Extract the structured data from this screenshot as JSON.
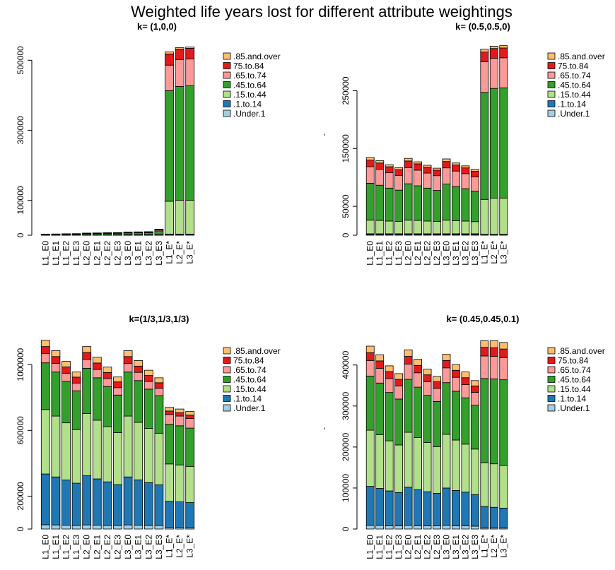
{
  "title": "Weighted life years lost for different attribute weightings",
  "chart_data": [
    {
      "type": "bar",
      "stacked": true,
      "title": "k= (1,0,0)",
      "legend": "right",
      "categories": [
        "L1_E0",
        "L1_E1",
        "L1_E2",
        "L1_E3",
        "L2_E0",
        "L2_E1",
        "L2_E2",
        "L2_E3",
        "L3_E0",
        "L3_E1",
        "L3_E2",
        "L3_E3",
        "L1_E*",
        "L2_E*",
        "L3_E*"
      ],
      "ylim": [
        0,
        545000
      ],
      "yticks": [
        0,
        100000,
        300000,
        500000
      ],
      "series": [
        {
          "name": ".Under.1",
          "color": "#a6cee3",
          "values": [
            30,
            35,
            40,
            45,
            60,
            65,
            70,
            75,
            90,
            95,
            100,
            170,
            1000,
            1000,
            1000
          ]
        },
        {
          "name": ".1.to.14",
          "color": "#1f78b4",
          "values": [
            60,
            70,
            80,
            90,
            120,
            130,
            140,
            150,
            180,
            190,
            200,
            340,
            2000,
            2000,
            2000
          ]
        },
        {
          "name": ".15.to.44",
          "color": "#b2df8a",
          "values": [
            450,
            525,
            600,
            675,
            900,
            975,
            1050,
            1125,
            1350,
            1425,
            1500,
            2550,
            94000,
            97000,
            97000
          ]
        },
        {
          "name": ".45.to.64",
          "color": "#33a02c",
          "values": [
            1650,
            1925,
            2200,
            2475,
            3300,
            3575,
            3850,
            4125,
            4950,
            5225,
            5500,
            9350,
            316000,
            325000,
            327000
          ]
        },
        {
          "name": ".65.to.74",
          "color": "#fb9a99",
          "values": [
            450,
            525,
            600,
            675,
            900,
            975,
            1050,
            1125,
            1350,
            1425,
            1500,
            2550,
            73000,
            77000,
            77000
          ]
        },
        {
          "name": "75.to.84",
          "color": "#e31a1c",
          "values": [
            240,
            280,
            320,
            360,
            480,
            520,
            560,
            600,
            720,
            760,
            800,
            1360,
            32000,
            30000,
            30000
          ]
        },
        {
          "name": ".85.and.over",
          "color": "#fdbf6f",
          "values": [
            120,
            140,
            160,
            180,
            240,
            260,
            280,
            300,
            360,
            380,
            400,
            680,
            6000,
            4000,
            4000
          ]
        }
      ]
    },
    {
      "type": "bar",
      "stacked": true,
      "title": "k= (0.5,0.5,0)",
      "legend": "right",
      "ylabel": "'",
      "categories": [
        "L1_E0",
        "L1_E1",
        "L1_E2",
        "L1_E3",
        "L2_E0",
        "L2_E1",
        "L2_E2",
        "L2_E3",
        "L3_E0",
        "L3_E1",
        "L3_E2",
        "L3_E3",
        "L1_E*",
        "L2_E*",
        "L3_E*"
      ],
      "ylim": [
        0,
        330000
      ],
      "yticks": [
        0,
        50000,
        150000,
        250000
      ],
      "series": [
        {
          "name": ".Under.1",
          "color": "#a6cee3",
          "values": [
            1000,
            1000,
            1000,
            1000,
            1000,
            1000,
            1000,
            1000,
            1000,
            1000,
            1000,
            1000,
            500,
            500,
            500
          ]
        },
        {
          "name": ".1.to.14",
          "color": "#1f78b4",
          "values": [
            1500,
            1500,
            1500,
            1500,
            1500,
            1500,
            1500,
            1500,
            1500,
            1500,
            1500,
            1500,
            1000,
            1000,
            1000
          ]
        },
        {
          "name": ".15.to.44",
          "color": "#b2df8a",
          "values": [
            23500,
            23000,
            22000,
            21500,
            23500,
            23000,
            22000,
            21500,
            23500,
            22500,
            22000,
            21000,
            60500,
            62500,
            62500
          ]
        },
        {
          "name": ".45.to.64",
          "color": "#33a02c",
          "values": [
            64000,
            61000,
            57000,
            54000,
            63000,
            60000,
            57000,
            53500,
            62500,
            59000,
            56000,
            52500,
            185000,
            190000,
            191000
          ]
        },
        {
          "name": ".65.to.74",
          "color": "#fb9a99",
          "values": [
            28500,
            27500,
            26500,
            25500,
            28000,
            27000,
            26000,
            25500,
            28000,
            27000,
            26000,
            25000,
            53000,
            52000,
            52000
          ]
        },
        {
          "name": "75.to.84",
          "color": "#e31a1c",
          "values": [
            11500,
            11000,
            10500,
            10000,
            11500,
            11000,
            10000,
            9500,
            11000,
            10500,
            10000,
            9500,
            17000,
            17000,
            17000
          ]
        },
        {
          "name": ".85.and.over",
          "color": "#fdbf6f",
          "values": [
            4500,
            4000,
            3500,
            3500,
            4500,
            3500,
            3500,
            3500,
            4500,
            3500,
            3500,
            3500,
            5000,
            4000,
            4000
          ]
        }
      ]
    },
    {
      "type": "bar",
      "stacked": true,
      "title": "k=(1/3,1/3,1/3)",
      "legend": "right",
      "categories": [
        "L1_E0",
        "L1_E1",
        "L1_E2",
        "L1_E3",
        "L2_E0",
        "L2_E1",
        "L2_E2",
        "L2_E3",
        "L3_E0",
        "L3_E1",
        "L3_E2",
        "L3_E3",
        "L1_E*",
        "L2_E*",
        "L3_E*"
      ],
      "ylim": [
        0,
        1160000
      ],
      "yticks": [
        0,
        200000,
        600000,
        1000000
      ],
      "series": [
        {
          "name": ".Under.1",
          "color": "#a6cee3",
          "values": [
            26000,
            25000,
            23000,
            22000,
            25000,
            24000,
            22000,
            21000,
            25000,
            23000,
            22000,
            21000,
            10000,
            10000,
            9000
          ]
        },
        {
          "name": ".1.to.14",
          "color": "#1f78b4",
          "values": [
            309000,
            292000,
            275000,
            257000,
            299000,
            281000,
            265000,
            249000,
            292000,
            276000,
            260000,
            248000,
            158000,
            155000,
            152000
          ]
        },
        {
          "name": ".15.to.44",
          "color": "#b2df8a",
          "values": [
            392000,
            370000,
            348000,
            326000,
            379000,
            357000,
            336000,
            316000,
            370000,
            350000,
            330000,
            314000,
            228000,
            225000,
            220000
          ]
        },
        {
          "name": ".45.to.64",
          "color": "#33a02c",
          "values": [
            284000,
            268000,
            252000,
            236000,
            275000,
            258000,
            244000,
            229000,
            268000,
            254000,
            239000,
            228000,
            241000,
            238000,
            233000
          ]
        },
        {
          "name": ".65.to.74",
          "color": "#fb9a99",
          "values": [
            56000,
            53000,
            50000,
            47000,
            54000,
            51000,
            48000,
            45000,
            53000,
            50000,
            47000,
            45000,
            60000,
            59000,
            58000
          ]
        },
        {
          "name": "75.to.84",
          "color": "#e31a1c",
          "values": [
            43000,
            41000,
            38000,
            36000,
            42000,
            39000,
            37000,
            35000,
            41000,
            38000,
            36000,
            34000,
            21000,
            21000,
            21000
          ]
        },
        {
          "name": ".85.and.over",
          "color": "#fdbf6f",
          "values": [
            38000,
            36000,
            34000,
            31000,
            36000,
            35000,
            33000,
            30000,
            36000,
            34000,
            32000,
            30000,
            22000,
            22000,
            22000
          ]
        }
      ]
    },
    {
      "type": "bar",
      "stacked": true,
      "title": "k= (0.45,0.45,0.1)",
      "legend": "right",
      "ylabel": "'",
      "categories": [
        "L1_E0",
        "L1_E1",
        "L1_E2",
        "L1_E3",
        "L2_E0",
        "L2_E1",
        "L2_E2",
        "L2_E3",
        "L3_E0",
        "L3_E1",
        "L3_E2",
        "L3_E3",
        "L1_E*",
        "L2_E*",
        "L3_E*"
      ],
      "ylim": [
        0,
        465000
      ],
      "yticks": [
        0,
        100000,
        200000,
        300000,
        400000
      ],
      "series": [
        {
          "name": ".Under.1",
          "color": "#a6cee3",
          "values": [
            9000,
            9000,
            8000,
            8000,
            9000,
            8000,
            8000,
            8000,
            9000,
            8000,
            8000,
            7000,
            3000,
            3000,
            3000
          ]
        },
        {
          "name": ".1.to.14",
          "color": "#1f78b4",
          "values": [
            95000,
            90000,
            85000,
            81000,
            93000,
            88000,
            83000,
            79000,
            91000,
            86000,
            82000,
            77000,
            52000,
            50000,
            48000
          ]
        },
        {
          "name": ".15.to.44",
          "color": "#b2df8a",
          "values": [
            137000,
            131000,
            122000,
            116000,
            134000,
            127000,
            120000,
            114000,
            131000,
            123000,
            117000,
            111000,
            107000,
            106000,
            104000
          ]
        },
        {
          "name": ".45.to.64",
          "color": "#33a02c",
          "values": [
            132000,
            126000,
            118000,
            112000,
            129000,
            123000,
            115000,
            110000,
            126000,
            119000,
            113000,
            107000,
            205000,
            207000,
            209000
          ]
        },
        {
          "name": ".65.to.74",
          "color": "#fb9a99",
          "values": [
            38000,
            36000,
            34000,
            32000,
            37000,
            35000,
            33000,
            32000,
            36000,
            34000,
            32000,
            31000,
            55000,
            55000,
            54000
          ]
        },
        {
          "name": "75.to.84",
          "color": "#e31a1c",
          "values": [
            19000,
            18000,
            17000,
            16000,
            19000,
            18000,
            17000,
            16000,
            18000,
            17000,
            17000,
            16000,
            21000,
            21000,
            21000
          ]
        },
        {
          "name": ".85.and.over",
          "color": "#fdbf6f",
          "values": [
            16000,
            15000,
            14000,
            14000,
            16000,
            15000,
            14000,
            13000,
            15000,
            14000,
            14000,
            13000,
            16000,
            17000,
            16000
          ]
        }
      ]
    }
  ]
}
